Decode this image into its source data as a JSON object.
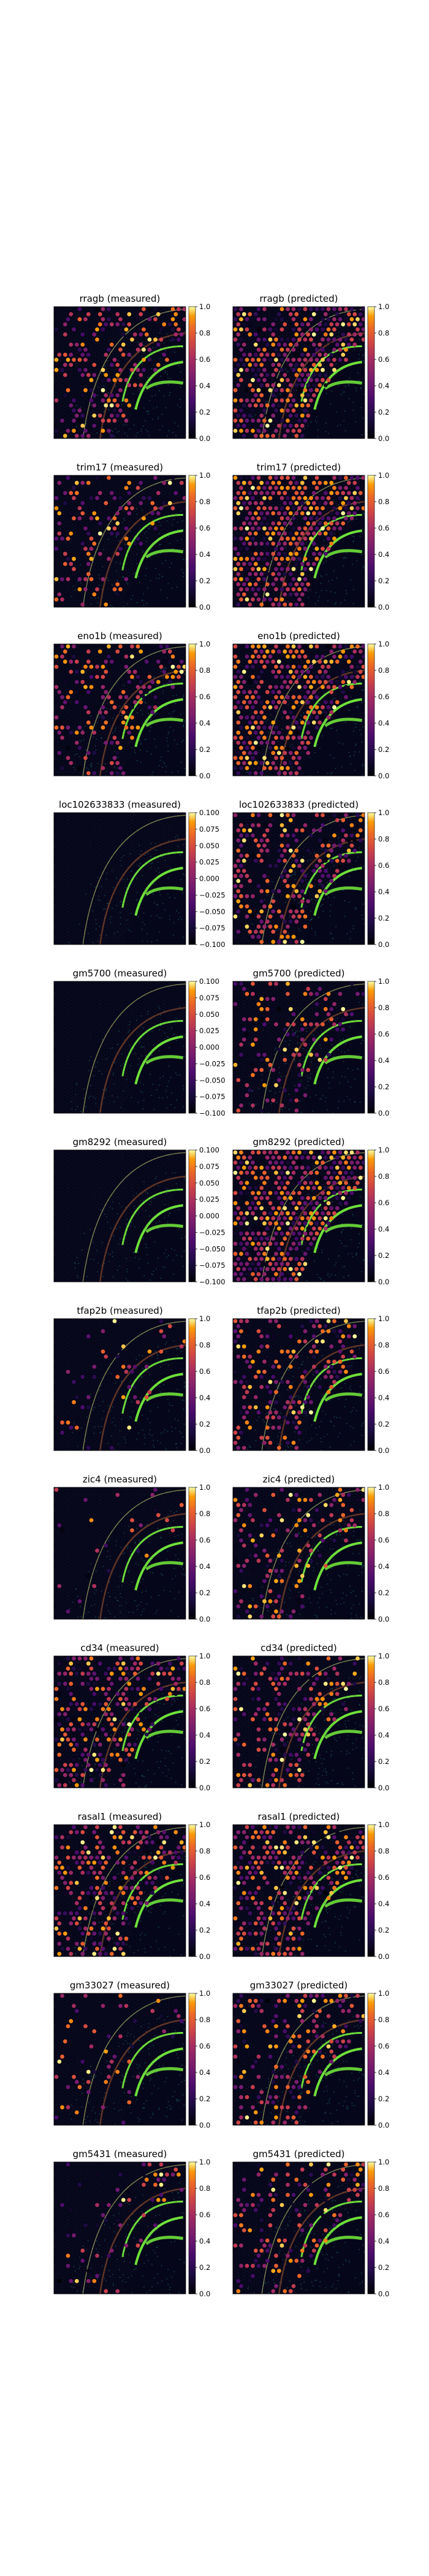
{
  "chart_data": {
    "type": "heatmap",
    "description_of_panels": "grid",
    "colormap": "inferno",
    "panels": [
      {
        "title": "rragb (measured)",
        "colorbar_ticks": [
          "0.0",
          "0.2",
          "0.4",
          "0.6",
          "0.8",
          "1.0"
        ],
        "clim": [
          0,
          1
        ],
        "intensity": 0.35
      },
      {
        "title": "rragb (predicted)",
        "colorbar_ticks": [
          "0.0",
          "0.2",
          "0.4",
          "0.6",
          "0.8",
          "1.0"
        ],
        "clim": [
          0,
          1
        ],
        "intensity": 0.8
      },
      {
        "title": "trim17 (measured)",
        "colorbar_ticks": [
          "0.0",
          "0.2",
          "0.4",
          "0.6",
          "0.8",
          "1.0"
        ],
        "clim": [
          0,
          1
        ],
        "intensity": 0.3
      },
      {
        "title": "trim17 (predicted)",
        "colorbar_ticks": [
          "0.0",
          "0.2",
          "0.4",
          "0.6",
          "0.8",
          "1.0"
        ],
        "clim": [
          0,
          1
        ],
        "intensity": 0.8
      },
      {
        "title": "eno1b (measured)",
        "colorbar_ticks": [
          "0.0",
          "0.2",
          "0.4",
          "0.6",
          "0.8",
          "1.0"
        ],
        "clim": [
          0,
          1
        ],
        "intensity": 0.4
      },
      {
        "title": "eno1b (predicted)",
        "colorbar_ticks": [
          "0.0",
          "0.2",
          "0.4",
          "0.6",
          "0.8",
          "1.0"
        ],
        "clim": [
          0,
          1
        ],
        "intensity": 0.75
      },
      {
        "title": "loc102633833 (measured)",
        "colorbar_ticks": [
          "−0.100",
          "−0.075",
          "−0.050",
          "−0.025",
          "0.000",
          "0.025",
          "0.050",
          "0.075",
          "0.100"
        ],
        "clim": [
          -0.1,
          0.1
        ],
        "intensity": 0.0
      },
      {
        "title": "loc102633833 (predicted)",
        "colorbar_ticks": [
          "0.0",
          "0.2",
          "0.4",
          "0.6",
          "0.8",
          "1.0"
        ],
        "clim": [
          0,
          1
        ],
        "intensity": 0.5
      },
      {
        "title": "gm5700 (measured)",
        "colorbar_ticks": [
          "−0.100",
          "−0.075",
          "−0.050",
          "−0.025",
          "0.000",
          "0.025",
          "0.050",
          "0.075",
          "0.100"
        ],
        "clim": [
          -0.1,
          0.1
        ],
        "intensity": 0.0
      },
      {
        "title": "gm5700 (predicted)",
        "colorbar_ticks": [
          "0.0",
          "0.2",
          "0.4",
          "0.6",
          "0.8",
          "1.0"
        ],
        "clim": [
          0,
          1
        ],
        "intensity": 0.3
      },
      {
        "title": "gm8292 (measured)",
        "colorbar_ticks": [
          "−0.100",
          "−0.075",
          "−0.050",
          "−0.025",
          "0.000",
          "0.025",
          "0.050",
          "0.075",
          "0.100"
        ],
        "clim": [
          -0.1,
          0.1
        ],
        "intensity": 0.0
      },
      {
        "title": "gm8292 (predicted)",
        "colorbar_ticks": [
          "0.0",
          "0.2",
          "0.4",
          "0.6",
          "0.8",
          "1.0"
        ],
        "clim": [
          0,
          1
        ],
        "intensity": 0.85
      },
      {
        "title": "tfap2b (measured)",
        "colorbar_ticks": [
          "0.0",
          "0.2",
          "0.4",
          "0.6",
          "0.8",
          "1.0"
        ],
        "clim": [
          0,
          1
        ],
        "intensity": 0.08
      },
      {
        "title": "tfap2b (predicted)",
        "colorbar_ticks": [
          "0.0",
          "0.2",
          "0.4",
          "0.6",
          "0.8",
          "1.0"
        ],
        "clim": [
          0,
          1
        ],
        "intensity": 0.4
      },
      {
        "title": "zic4 (measured)",
        "colorbar_ticks": [
          "0.0",
          "0.2",
          "0.4",
          "0.6",
          "0.8",
          "1.0"
        ],
        "clim": [
          0,
          1
        ],
        "intensity": 0.06
      },
      {
        "title": "zic4 (predicted)",
        "colorbar_ticks": [
          "0.0",
          "0.2",
          "0.4",
          "0.6",
          "0.8",
          "1.0"
        ],
        "clim": [
          0,
          1
        ],
        "intensity": 0.3
      },
      {
        "title": "cd34 (measured)",
        "colorbar_ticks": [
          "0.0",
          "0.2",
          "0.4",
          "0.6",
          "0.8",
          "1.0"
        ],
        "clim": [
          0,
          1
        ],
        "intensity": 0.5
      },
      {
        "title": "cd34 (predicted)",
        "colorbar_ticks": [
          "0.0",
          "0.2",
          "0.4",
          "0.6",
          "0.8",
          "1.0"
        ],
        "clim": [
          0,
          1
        ],
        "intensity": 0.4
      },
      {
        "title": "rasal1 (measured)",
        "colorbar_ticks": [
          "0.0",
          "0.2",
          "0.4",
          "0.6",
          "0.8",
          "1.0"
        ],
        "clim": [
          0,
          1
        ],
        "intensity": 0.55
      },
      {
        "title": "rasal1 (predicted)",
        "colorbar_ticks": [
          "0.0",
          "0.2",
          "0.4",
          "0.6",
          "0.8",
          "1.0"
        ],
        "clim": [
          0,
          1
        ],
        "intensity": 0.6
      },
      {
        "title": "gm33027 (measured)",
        "colorbar_ticks": [
          "0.0",
          "0.2",
          "0.4",
          "0.6",
          "0.8",
          "1.0"
        ],
        "clim": [
          0,
          1
        ],
        "intensity": 0.15
      },
      {
        "title": "gm33027 (predicted)",
        "colorbar_ticks": [
          "0.0",
          "0.2",
          "0.4",
          "0.6",
          "0.8",
          "1.0"
        ],
        "clim": [
          0,
          1
        ],
        "intensity": 0.35
      },
      {
        "title": "gm5431 (measured)",
        "colorbar_ticks": [
          "0.0",
          "0.2",
          "0.4",
          "0.6",
          "0.8",
          "1.0"
        ],
        "clim": [
          0,
          1
        ],
        "intensity": 0.15
      },
      {
        "title": "gm5431 (predicted)",
        "colorbar_ticks": [
          "0.0",
          "0.2",
          "0.4",
          "0.6",
          "0.8",
          "1.0"
        ],
        "clim": [
          0,
          1
        ],
        "intensity": 0.3
      }
    ],
    "colors": {
      "background_tissue": "#06061a",
      "hippocampus_bright": "#6fe03a",
      "tissue_border": "#c8d070",
      "cortex_layer": "#1b6a6a"
    }
  }
}
